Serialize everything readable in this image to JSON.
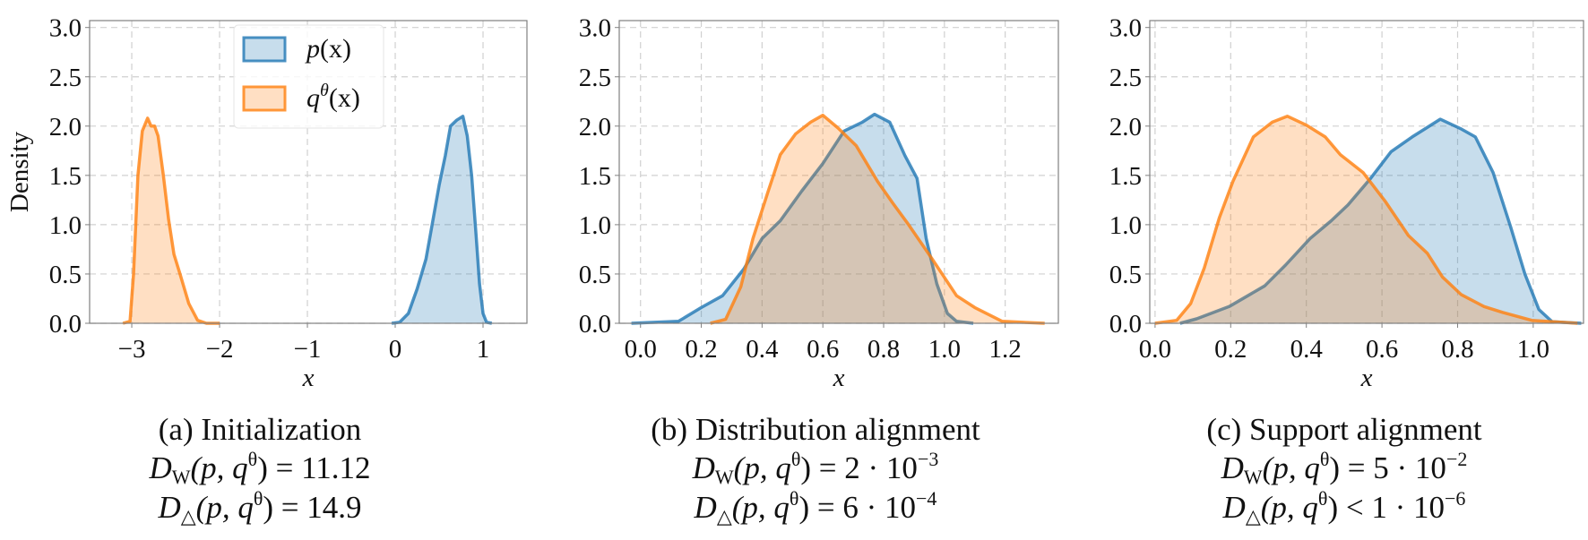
{
  "chart_data": [
    {
      "type": "area",
      "id": "a",
      "xlabel": "x",
      "ylabel": "Density",
      "xlim": [
        -3.48,
        1.5
      ],
      "ylim": [
        0,
        3.07
      ],
      "xticks": [
        -3,
        -2,
        -1,
        0,
        1
      ],
      "xtick_labels": [
        "−3",
        "−2",
        "−1",
        "0",
        "1"
      ],
      "yticks": [
        0,
        0.5,
        1,
        1.5,
        2,
        2.5,
        3
      ],
      "ytick_labels": [
        "0.0",
        "0.5",
        "1.0",
        "1.5",
        "2.0",
        "2.5",
        "3.0"
      ],
      "grid": true,
      "legend": {
        "placement": "top-center",
        "entries": [
          {
            "name": "p",
            "base": "p",
            "sup": "",
            "rest": "(x)"
          },
          {
            "name": "q",
            "base": "q",
            "sup": "θ",
            "rest": "(x)"
          }
        ]
      },
      "series": [
        {
          "name": "p",
          "x": [
            -0.04,
            0.05,
            0.15,
            0.25,
            0.35,
            0.42,
            0.5,
            0.57,
            0.63,
            0.7,
            0.77,
            0.82,
            0.87,
            0.92,
            0.96,
            1.0,
            1.04,
            1.1
          ],
          "y": [
            0,
            0.01,
            0.1,
            0.35,
            0.65,
            1.0,
            1.4,
            1.7,
            2.0,
            2.06,
            2.1,
            1.9,
            1.5,
            0.9,
            0.4,
            0.1,
            0.01,
            0
          ]
        },
        {
          "name": "q",
          "x": [
            -3.1,
            -3.02,
            -2.98,
            -2.93,
            -2.88,
            -2.82,
            -2.78,
            -2.74,
            -2.7,
            -2.64,
            -2.58,
            -2.52,
            -2.45,
            -2.35,
            -2.25,
            -2.15,
            -2.0
          ],
          "y": [
            0,
            0.02,
            0.5,
            1.5,
            1.95,
            2.08,
            2.0,
            2.0,
            1.9,
            1.5,
            1.05,
            0.7,
            0.5,
            0.2,
            0.03,
            0.0,
            0
          ]
        }
      ],
      "caption": {
        "title": "(a) Initialization",
        "lines": [
          {
            "sym": "D",
            "sub": "W",
            "arg": "(p, q",
            "arg_sup": "θ",
            "rel": ") = 11.12",
            "exp": ""
          },
          {
            "sym": "D",
            "sub": "△",
            "arg": "(p, q",
            "arg_sup": "θ",
            "rel": ") = 14.9",
            "exp": ""
          }
        ]
      }
    },
    {
      "type": "area",
      "id": "b",
      "xlabel": "x",
      "ylabel": "",
      "xlim": [
        -0.07,
        1.375
      ],
      "ylim": [
        0,
        3.07
      ],
      "xticks": [
        0,
        0.2,
        0.4,
        0.6,
        0.8,
        1.0,
        1.2
      ],
      "xtick_labels": [
        "0.0",
        "0.2",
        "0.4",
        "0.6",
        "0.8",
        "1.0",
        "1.2"
      ],
      "yticks": [
        0,
        0.5,
        1,
        1.5,
        2,
        2.5,
        3
      ],
      "ytick_labels": [
        "0.0",
        "0.5",
        "1.0",
        "1.5",
        "2.0",
        "2.5",
        "3.0"
      ],
      "grid": true,
      "series": [
        {
          "name": "p",
          "x": [
            -0.03,
            0.125,
            0.2,
            0.27,
            0.34,
            0.4,
            0.46,
            0.53,
            0.6,
            0.67,
            0.73,
            0.77,
            0.82,
            0.87,
            0.91,
            0.94,
            0.975,
            1.01,
            1.04,
            1.095
          ],
          "y": [
            0,
            0.02,
            0.16,
            0.28,
            0.55,
            0.86,
            1.04,
            1.34,
            1.62,
            1.95,
            2.04,
            2.12,
            2.04,
            1.7,
            1.47,
            0.86,
            0.4,
            0.1,
            0.02,
            0
          ]
        },
        {
          "name": "q",
          "x": [
            0.23,
            0.28,
            0.33,
            0.37,
            0.42,
            0.46,
            0.51,
            0.56,
            0.6,
            0.65,
            0.71,
            0.78,
            0.83,
            0.88,
            0.96,
            1.04,
            1.1,
            1.19,
            1.33
          ],
          "y": [
            0,
            0.04,
            0.37,
            0.86,
            1.34,
            1.71,
            1.92,
            2.04,
            2.11,
            1.98,
            1.8,
            1.44,
            1.22,
            1.01,
            0.65,
            0.28,
            0.16,
            0.02,
            0
          ]
        }
      ],
      "caption": {
        "title": "(b) Distribution alignment",
        "lines": [
          {
            "sym": "D",
            "sub": "W",
            "arg": "(p, q",
            "arg_sup": "θ",
            "rel": ") = 2 · 10",
            "exp": "−3"
          },
          {
            "sym": "D",
            "sub": "△",
            "arg": "(p, q",
            "arg_sup": "θ",
            "rel": ") = 6 · 10",
            "exp": "−4"
          }
        ]
      }
    },
    {
      "type": "area",
      "id": "c",
      "xlabel": "x",
      "ylabel": "",
      "xlim": [
        -0.014,
        1.133
      ],
      "ylim": [
        0,
        3.07
      ],
      "xticks": [
        0,
        0.2,
        0.4,
        0.6,
        0.8,
        1.0
      ],
      "xtick_labels": [
        "0.0",
        "0.2",
        "0.4",
        "0.6",
        "0.8",
        "1.0"
      ],
      "yticks": [
        0,
        0.5,
        1,
        1.5,
        2,
        2.5,
        3
      ],
      "ytick_labels": [
        "0.0",
        "0.5",
        "1.0",
        "1.5",
        "2.0",
        "2.5",
        "3.0"
      ],
      "grid": true,
      "series": [
        {
          "name": "p",
          "x": [
            0.066,
            0.11,
            0.196,
            0.29,
            0.345,
            0.41,
            0.466,
            0.51,
            0.57,
            0.624,
            0.68,
            0.717,
            0.754,
            0.81,
            0.847,
            0.894,
            0.94,
            0.978,
            1.015,
            1.05,
            1.127
          ],
          "y": [
            0,
            0.045,
            0.17,
            0.38,
            0.59,
            0.86,
            1.04,
            1.2,
            1.47,
            1.74,
            1.89,
            1.98,
            2.07,
            1.97,
            1.89,
            1.53,
            0.98,
            0.5,
            0.14,
            0.015,
            0
          ]
        },
        {
          "name": "q",
          "x": [
            0,
            0.057,
            0.094,
            0.13,
            0.17,
            0.206,
            0.26,
            0.31,
            0.35,
            0.4,
            0.45,
            0.49,
            0.55,
            0.61,
            0.67,
            0.72,
            0.76,
            0.81,
            0.87,
            0.92,
            0.996,
            1.117
          ],
          "y": [
            0,
            0.03,
            0.2,
            0.56,
            1.07,
            1.44,
            1.89,
            2.04,
            2.1,
            2.01,
            1.89,
            1.71,
            1.53,
            1.23,
            0.89,
            0.71,
            0.47,
            0.29,
            0.17,
            0.11,
            0.03,
            0
          ]
        }
      ],
      "caption": {
        "title": "(c) Support alignment",
        "lines": [
          {
            "sym": "D",
            "sub": "W",
            "arg": "(p, q",
            "arg_sup": "θ",
            "rel": ") = 5 · 10",
            "exp": "−2"
          },
          {
            "sym": "D",
            "sub": "△",
            "arg": "(p, q",
            "arg_sup": "θ",
            "rel": ") < 1 · 10",
            "exp": "−6"
          }
        ]
      }
    }
  ],
  "colors": {
    "p": "#1f77b4",
    "q": "#ff7f0e",
    "grid": "#d0d0d0",
    "frame": "#808080"
  }
}
